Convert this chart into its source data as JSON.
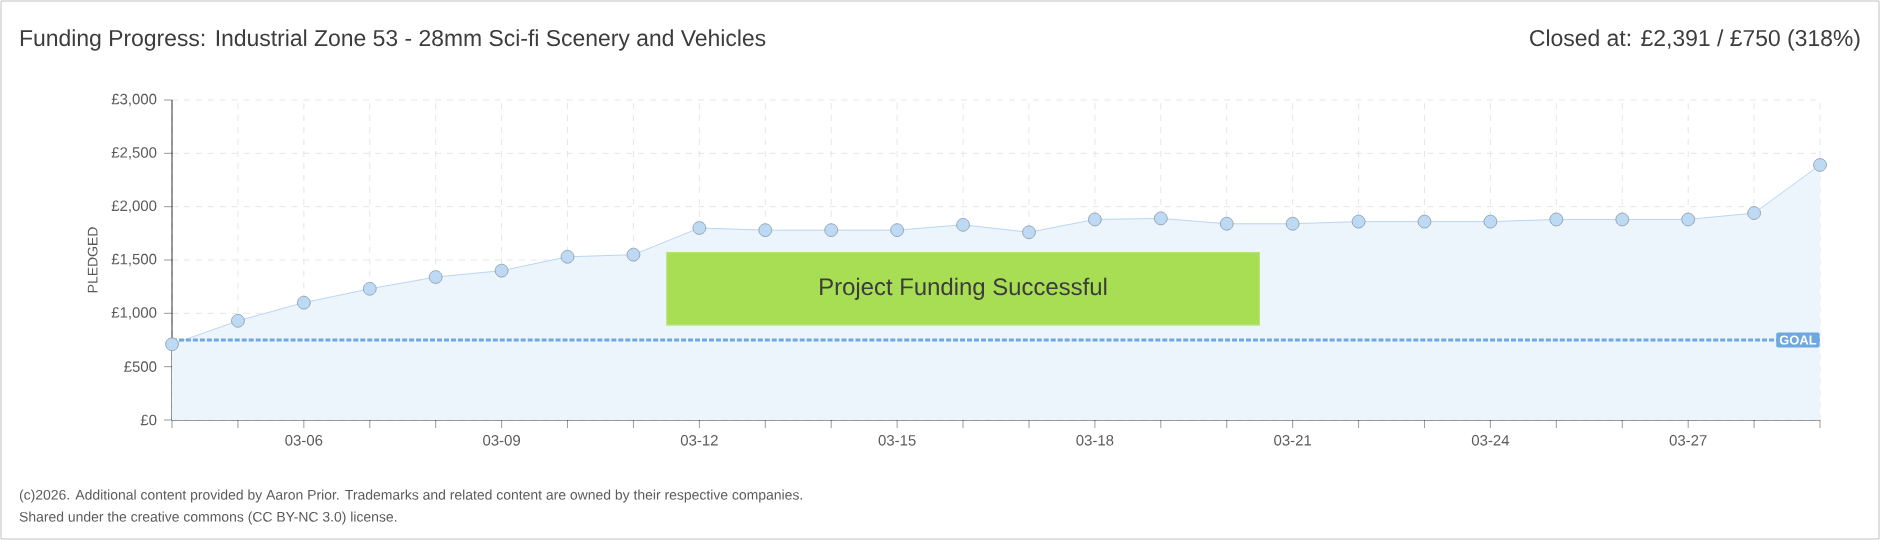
{
  "chart_data": {
    "type": "area",
    "title": "Funding Progress: Industrial Zone 53 - 28mm Sci-fi Scenery and Vehicles",
    "subtitle": "Closed at:  £2,391 /  £750 (318%)",
    "ylabel": "PLEDGED",
    "categories": [
      null,
      null,
      "03-06",
      null,
      null,
      "03-09",
      null,
      null,
      "03-12",
      null,
      null,
      "03-15",
      null,
      null,
      "03-18",
      null,
      null,
      "03-21",
      null,
      null,
      "03-24",
      null,
      null,
      "03-27",
      null,
      null
    ],
    "series": [
      {
        "color": "#a9cdf0",
        "values": [
          710,
          930,
          1100,
          1230,
          1340,
          1400,
          1530,
          1550,
          1800,
          1780,
          1780,
          1780,
          1830,
          1760,
          1880,
          1890,
          1840,
          1840,
          1860,
          1860,
          1860,
          1880,
          1880,
          1880,
          1940,
          2391
        ]
      }
    ],
    "ylim": [
      0,
      3000
    ],
    "yticks": [
      {
        "value": 0,
        "label": "£0"
      },
      {
        "value": 500,
        "label": "£500"
      },
      {
        "value": 1000,
        "label": "£1,000"
      },
      {
        "value": 1500,
        "label": "£1,500"
      },
      {
        "value": 2000,
        "label": "£2,000"
      },
      {
        "value": 2500,
        "label": "£2,500"
      },
      {
        "value": 3000,
        "label": "£3,000"
      }
    ],
    "ref_lines": [
      {
        "axis": "y",
        "value": 750,
        "label": "GOAL",
        "color": "#6fa8e0",
        "line_style": "dashed"
      }
    ],
    "annotations": [
      "Project Funding Successful",
      "(c)2026. Additional content provided by Aaron Prior. Trademarks and related content are owned by their respective companies.",
      "Shared under the creative commons (CC BY-NC 3.0) license."
    ],
    "grid": true,
    "marker": "circle",
    "line_style": "solid"
  }
}
